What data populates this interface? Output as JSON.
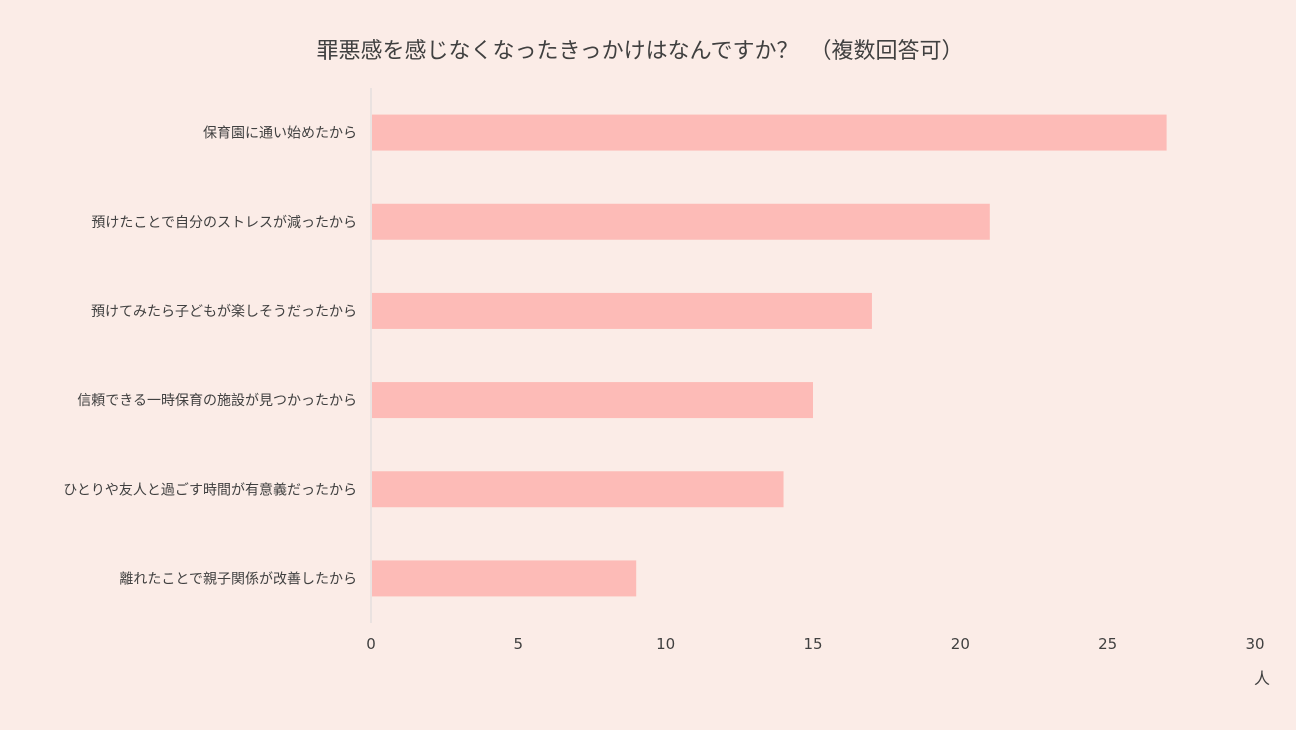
{
  "chart_data": {
    "type": "bar",
    "orientation": "horizontal",
    "title": "罪悪感を感じなくなったきっかけはなんですか？　（複数回答可）",
    "xlabel": "人",
    "ylabel": "",
    "categories": [
      "保育園に通い始めたから",
      "預けたことで自分のストレスが減ったから",
      "預けてみたら子どもが楽しそうだったから",
      "信頼できる一時保育の施設が見つかったから",
      "ひとりや友人と過ごす時間が有意義だったから",
      "離れたことで親子関係が改善したから"
    ],
    "values": [
      27,
      21,
      17,
      15,
      14,
      9
    ],
    "xlim": [
      0,
      30
    ],
    "xticks": [
      "0",
      "5",
      "10",
      "15",
      "20",
      "25",
      "30"
    ],
    "grid": false,
    "legend": "none",
    "colors": {
      "background": "#FBECE7",
      "bar": "#FDBBB7",
      "axis": "#D9D9D9",
      "text": "#404040"
    }
  }
}
